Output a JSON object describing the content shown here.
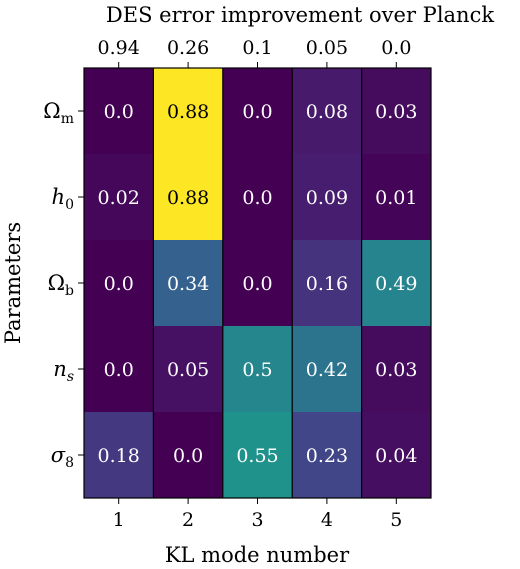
{
  "chart_data": {
    "type": "heatmap",
    "title": "DES error improvement over Planck",
    "xlabel": "KL mode number",
    "ylabel": "Parameters",
    "x_categories": [
      "1",
      "2",
      "3",
      "4",
      "5"
    ],
    "top_categories": [
      "0.94",
      "0.26",
      "0.1",
      "0.05",
      "0.0"
    ],
    "rows": [
      {
        "base": "Ω",
        "sub": "m",
        "sub_italic": false
      },
      {
        "base": "h",
        "sub": "0",
        "sub_italic": false
      },
      {
        "base": "Ω",
        "sub": "b",
        "sub_italic": false
      },
      {
        "base": "n",
        "sub": "s",
        "sub_italic": true
      },
      {
        "base": "σ",
        "sub": "8",
        "sub_italic": false
      }
    ],
    "values": [
      [
        0.0,
        0.88,
        0.0,
        0.08,
        0.03
      ],
      [
        0.02,
        0.88,
        0.0,
        0.09,
        0.01
      ],
      [
        0.0,
        0.34,
        0.0,
        0.16,
        0.49
      ],
      [
        0.0,
        0.05,
        0.5,
        0.42,
        0.03
      ],
      [
        0.18,
        0.0,
        0.55,
        0.23,
        0.04
      ]
    ],
    "value_labels": [
      [
        "0.0",
        "0.88",
        "0.0",
        "0.08",
        "0.03"
      ],
      [
        "0.02",
        "0.88",
        "0.0",
        "0.09",
        "0.01"
      ],
      [
        "0.0",
        "0.34",
        "0.0",
        "0.16",
        "0.49"
      ],
      [
        "0.0",
        "0.05",
        "0.5",
        "0.42",
        "0.03"
      ],
      [
        "0.18",
        "0.0",
        "0.55",
        "0.23",
        "0.04"
      ]
    ],
    "colormap": "viridis",
    "vmin": 0.0,
    "vmax": 0.88,
    "column_borders": true,
    "grid": false
  }
}
